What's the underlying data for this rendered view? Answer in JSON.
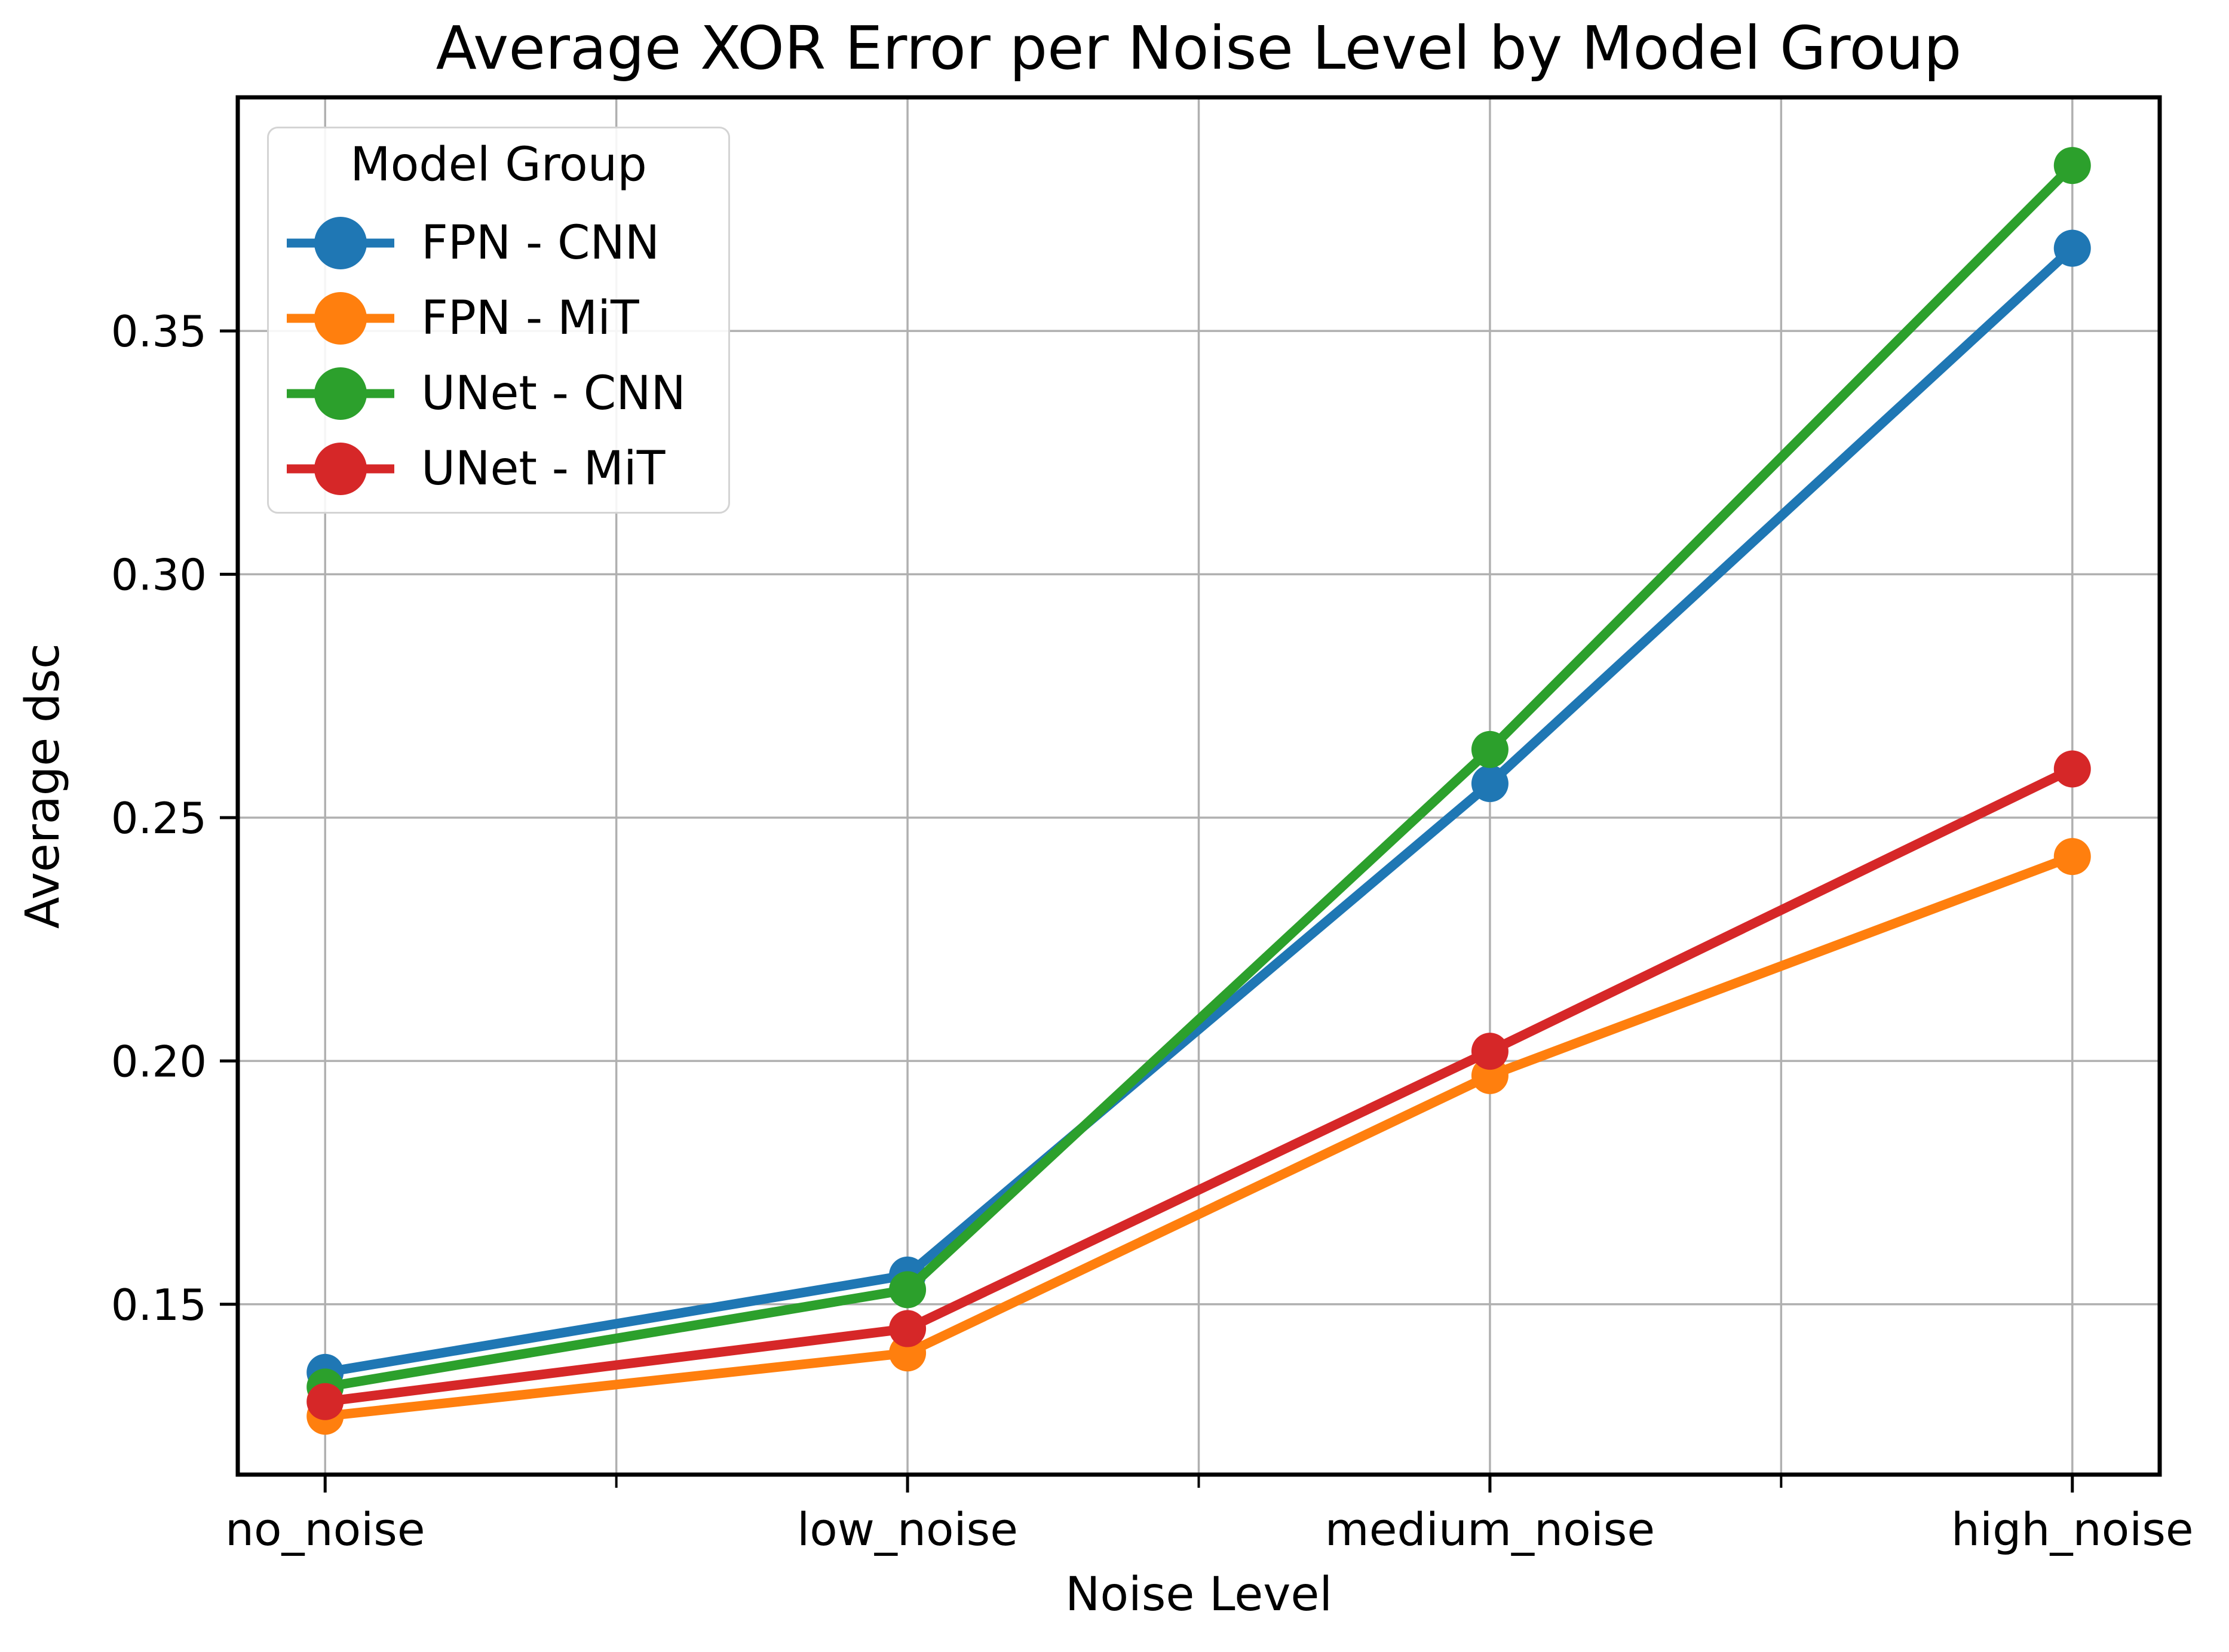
{
  "figure_title": "Average XOR Error per Noise Level by Model Group",
  "chart_data": {
    "type": "line",
    "title": "Average XOR Error per Noise Level by Model Group",
    "xlabel": "Noise Level",
    "ylabel": "Average dsc",
    "categories": [
      "no_noise",
      "low_noise",
      "medium_noise",
      "high_noise"
    ],
    "series": [
      {
        "name": "FPN - CNN",
        "color": "#1f77b4",
        "values": [
          0.136,
          0.156,
          0.257,
          0.367
        ]
      },
      {
        "name": "FPN - MiT",
        "color": "#ff7f0e",
        "values": [
          0.127,
          0.14,
          0.197,
          0.242
        ]
      },
      {
        "name": "UNet - CNN",
        "color": "#2ca02c",
        "values": [
          0.133,
          0.153,
          0.264,
          0.384
        ]
      },
      {
        "name": "UNet - MiT",
        "color": "#d62728",
        "values": [
          0.13,
          0.145,
          0.202,
          0.26
        ]
      }
    ],
    "legend": {
      "title": "Model Group",
      "position": "upper left"
    },
    "yticks": [
      0.35,
      0.3,
      0.25,
      0.2,
      0.15
    ],
    "ytick_labels": [
      "0.35",
      "0.30",
      "0.25",
      "0.20",
      "0.15"
    ],
    "x_minor_ticks": [
      0.5,
      1.5,
      2.5
    ],
    "xlim": [
      -0.15,
      3.15
    ],
    "ylim": [
      0.115,
      0.398
    ],
    "grid": true,
    "grid_color": "#b0b0b0"
  }
}
